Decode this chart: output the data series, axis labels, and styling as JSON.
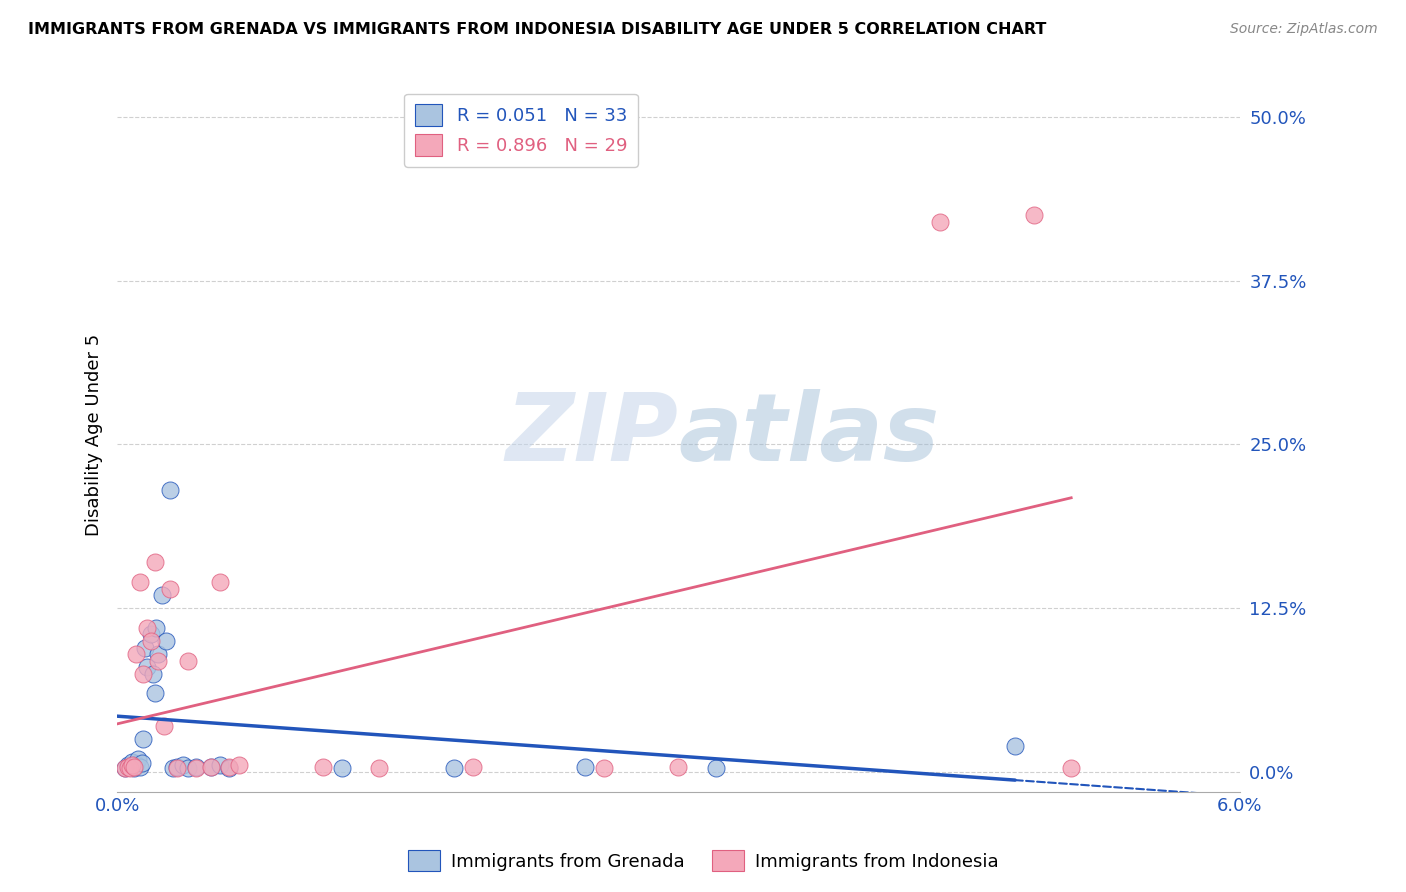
{
  "title": "IMMIGRANTS FROM GRENADA VS IMMIGRANTS FROM INDONESIA DISABILITY AGE UNDER 5 CORRELATION CHART",
  "source": "Source: ZipAtlas.com",
  "ylabel": "Disability Age Under 5",
  "ytick_values": [
    0.0,
    12.5,
    25.0,
    37.5,
    50.0
  ],
  "xlim": [
    0.0,
    6.0
  ],
  "ylim": [
    -1.5,
    53.0
  ],
  "grenada_R": 0.051,
  "grenada_N": 33,
  "indonesia_R": 0.896,
  "indonesia_N": 29,
  "grenada_color": "#aac4e0",
  "indonesia_color": "#f4a8ba",
  "grenada_line_color": "#2255bb",
  "indonesia_line_color": "#e06080",
  "grenada_x": [
    0.04,
    0.06,
    0.07,
    0.08,
    0.09,
    0.1,
    0.11,
    0.12,
    0.13,
    0.14,
    0.15,
    0.16,
    0.18,
    0.19,
    0.2,
    0.21,
    0.22,
    0.24,
    0.26,
    0.28,
    0.3,
    0.32,
    0.35,
    0.38,
    0.42,
    0.5,
    0.55,
    0.6,
    1.2,
    1.8,
    2.5,
    3.2,
    4.8
  ],
  "grenada_y": [
    0.3,
    0.5,
    0.4,
    0.8,
    0.3,
    0.6,
    1.0,
    0.4,
    0.7,
    2.5,
    9.5,
    8.0,
    10.5,
    7.5,
    6.0,
    11.0,
    9.0,
    13.5,
    10.0,
    21.5,
    0.3,
    0.4,
    0.5,
    0.3,
    0.4,
    0.4,
    0.5,
    0.3,
    0.3,
    0.3,
    0.4,
    0.3,
    2.0
  ],
  "indonesia_x": [
    0.04,
    0.06,
    0.07,
    0.08,
    0.09,
    0.1,
    0.12,
    0.14,
    0.16,
    0.18,
    0.2,
    0.22,
    0.25,
    0.28,
    0.32,
    0.38,
    0.42,
    0.5,
    0.55,
    0.6,
    0.65,
    1.1,
    1.4,
    1.9,
    2.6,
    3.0,
    4.4,
    4.9,
    5.1
  ],
  "indonesia_y": [
    0.3,
    0.4,
    0.3,
    0.5,
    0.4,
    9.0,
    14.5,
    7.5,
    11.0,
    10.0,
    16.0,
    8.5,
    3.5,
    14.0,
    0.3,
    8.5,
    0.3,
    0.4,
    14.5,
    0.4,
    0.5,
    0.4,
    0.3,
    0.4,
    0.3,
    0.4,
    42.0,
    42.5,
    0.3
  ],
  "watermark_zip": "ZIP",
  "watermark_atlas": "atlas",
  "background_color": "#ffffff",
  "grid_color": "#d0d0d0",
  "grid_style": "--"
}
